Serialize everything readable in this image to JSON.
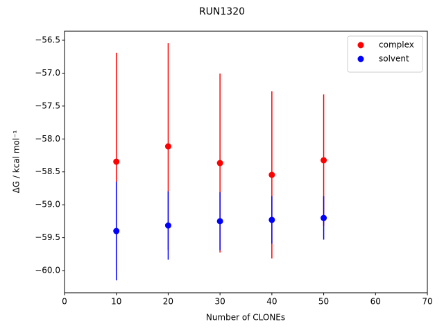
{
  "chart_data": {
    "type": "errorbar-scatter",
    "title": "RUN1320",
    "xlabel": "Number of CLONEs",
    "ylabel": "ΔG / kcal mol⁻¹",
    "x": [
      10,
      20,
      30,
      40,
      50
    ],
    "series": [
      {
        "name": "complex",
        "color": "#ff0000",
        "values": [
          -58.345,
          -58.113,
          -58.366,
          -58.545,
          -58.324
        ],
        "errors": [
          1.655,
          1.57,
          1.36,
          1.27,
          1.0
        ]
      },
      {
        "name": "solvent",
        "color": "#0000ff",
        "values": [
          -59.399,
          -59.315,
          -59.25,
          -59.23,
          -59.2
        ],
        "errors": [
          0.75,
          0.52,
          0.44,
          0.36,
          0.33
        ]
      }
    ],
    "xlim": [
      0,
      70
    ],
    "xticks": [
      0,
      10,
      20,
      30,
      40,
      50,
      60,
      70
    ],
    "ylim": [
      -60.337,
      -56.363
    ],
    "yticks": [
      {
        "value": -56.5,
        "label": "−56.5"
      },
      {
        "value": -57.0,
        "label": "−57.0"
      },
      {
        "value": -57.5,
        "label": "−57.5"
      },
      {
        "value": -58.0,
        "label": "−58.0"
      },
      {
        "value": -58.5,
        "label": "−58.5"
      },
      {
        "value": -59.0,
        "label": "−59.0"
      },
      {
        "value": -59.5,
        "label": "−59.5"
      },
      {
        "value": -60.0,
        "label": "−60.0"
      }
    ],
    "legend": "upper right",
    "grid": false
  }
}
